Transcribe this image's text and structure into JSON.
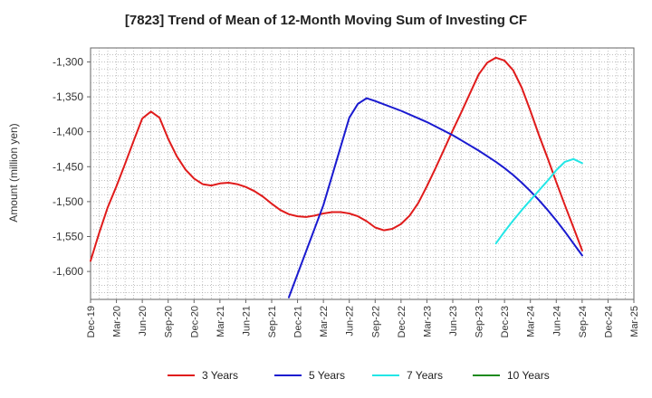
{
  "chart_data": {
    "type": "line",
    "title": "[7823]  Trend of Mean of 12-Month Moving Sum of Investing CF",
    "xlabel": "",
    "ylabel": "Amount (million yen)",
    "ylim": [
      -1640,
      -1280
    ],
    "yticks": [
      -1300,
      -1350,
      -1400,
      -1450,
      -1500,
      -1550,
      -1600
    ],
    "xticks": [
      "Dec-19",
      "Mar-20",
      "Jun-20",
      "Sep-20",
      "Dec-20",
      "Mar-21",
      "Jun-21",
      "Sep-21",
      "Dec-21",
      "Mar-22",
      "Jun-22",
      "Sep-22",
      "Dec-22",
      "Mar-23",
      "Jun-23",
      "Sep-23",
      "Dec-23",
      "Mar-24",
      "Jun-24",
      "Sep-24",
      "Dec-24",
      "Mar-25"
    ],
    "grid": true,
    "legend_position": "bottom",
    "series": [
      {
        "name": "3 Years",
        "color": "#e01b1b",
        "x": [
          "Dec-19",
          "Jan-20",
          "Feb-20",
          "Mar-20",
          "Apr-20",
          "May-20",
          "Jun-20",
          "Jul-20",
          "Aug-20",
          "Sep-20",
          "Oct-20",
          "Nov-20",
          "Dec-20",
          "Jan-21",
          "Feb-21",
          "Mar-21",
          "Apr-21",
          "May-21",
          "Jun-21",
          "Jul-21",
          "Aug-21",
          "Sep-21",
          "Oct-21",
          "Nov-21",
          "Dec-21",
          "Jan-22",
          "Feb-22",
          "Mar-22",
          "Apr-22",
          "May-22",
          "Jun-22",
          "Jul-22",
          "Aug-22",
          "Sep-22",
          "Oct-22",
          "Nov-22",
          "Dec-22",
          "Jan-23",
          "Feb-23",
          "Mar-23",
          "Apr-23",
          "May-23",
          "Jun-23",
          "Jul-23",
          "Aug-23",
          "Sep-23",
          "Oct-23",
          "Nov-23",
          "Dec-23",
          "Jan-24",
          "Feb-24",
          "Mar-24",
          "Apr-24",
          "May-24",
          "Jun-24",
          "Jul-24",
          "Aug-24",
          "Sep-24"
        ],
        "values": [
          -1585,
          -1545,
          -1508,
          -1478,
          -1446,
          -1413,
          -1381,
          -1371,
          -1380,
          -1410,
          -1435,
          -1454,
          -1467,
          -1475,
          -1477,
          -1474,
          -1473,
          -1475,
          -1479,
          -1485,
          -1493,
          -1503,
          -1512,
          -1518,
          -1521,
          -1522,
          -1520,
          -1517,
          -1515,
          -1515,
          -1517,
          -1521,
          -1528,
          -1537,
          -1541,
          -1539,
          -1532,
          -1520,
          -1502,
          -1478,
          -1452,
          -1425,
          -1398,
          -1372,
          -1345,
          -1318,
          -1301,
          -1294,
          -1298,
          -1312,
          -1337,
          -1370,
          -1405,
          -1438,
          -1472,
          -1505,
          -1537,
          -1570
        ]
      },
      {
        "name": "5 Years",
        "color": "#1a1ad0",
        "x": [
          "Nov-21",
          "Mar-22",
          "Jun-22",
          "Jul-22",
          "Aug-22",
          "Sep-22",
          "Dec-22",
          "Mar-23",
          "Jun-23",
          "Sep-23",
          "Oct-23",
          "Nov-23",
          "Dec-23",
          "Jan-24",
          "Feb-24",
          "Mar-24",
          "Apr-24",
          "May-24",
          "Jun-24",
          "Jul-24",
          "Aug-24",
          "Sep-24"
        ],
        "values": [
          -1637,
          -1505,
          -1380,
          -1360,
          -1352,
          -1356,
          -1370,
          -1386,
          -1405,
          -1427,
          -1435,
          -1443,
          -1452,
          -1462,
          -1473,
          -1485,
          -1498,
          -1512,
          -1527,
          -1543,
          -1560,
          -1577
        ]
      },
      {
        "name": "7 Years",
        "color": "#22e6e6",
        "x": [
          "Nov-23",
          "Dec-23",
          "Jan-24",
          "Feb-24",
          "Mar-24",
          "Apr-24",
          "May-24",
          "Jun-24",
          "Jul-24",
          "Aug-24",
          "Sep-24"
        ],
        "values": [
          -1560,
          -1543,
          -1527,
          -1512,
          -1498,
          -1484,
          -1470,
          -1455,
          -1443,
          -1439,
          -1445
        ]
      },
      {
        "name": "10 Years",
        "color": "#1e8a1e",
        "x": [],
        "values": []
      }
    ]
  }
}
